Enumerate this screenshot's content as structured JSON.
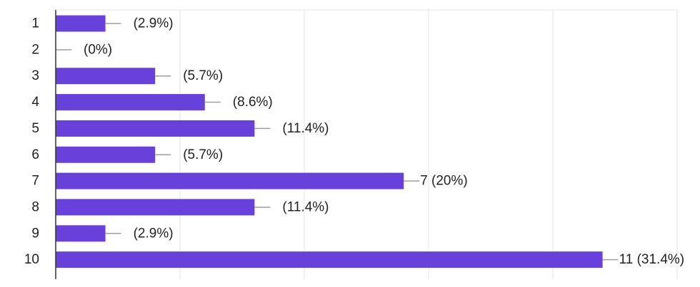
{
  "chart_data": {
    "type": "bar",
    "orientation": "horizontal",
    "categories": [
      "1",
      "2",
      "3",
      "4",
      "5",
      "6",
      "7",
      "8",
      "9",
      "10"
    ],
    "values": [
      1,
      0,
      2,
      3,
      4,
      2,
      7,
      4,
      1,
      11
    ],
    "data_labels": [
      "(2.9%)",
      "(0%)",
      "(5.7%)",
      "(8.6%)",
      "(11.4%)",
      "(5.7%)",
      "7 (20%)",
      "(11.4%)",
      "(2.9%)",
      "11 (31.4%)"
    ],
    "xlim": [
      0,
      12.5
    ],
    "grid": true,
    "bar_color": "#6741d9",
    "leader_color": "#9e9e9e",
    "grid_color": "#e6e6e6",
    "axis_color": "#333333"
  }
}
